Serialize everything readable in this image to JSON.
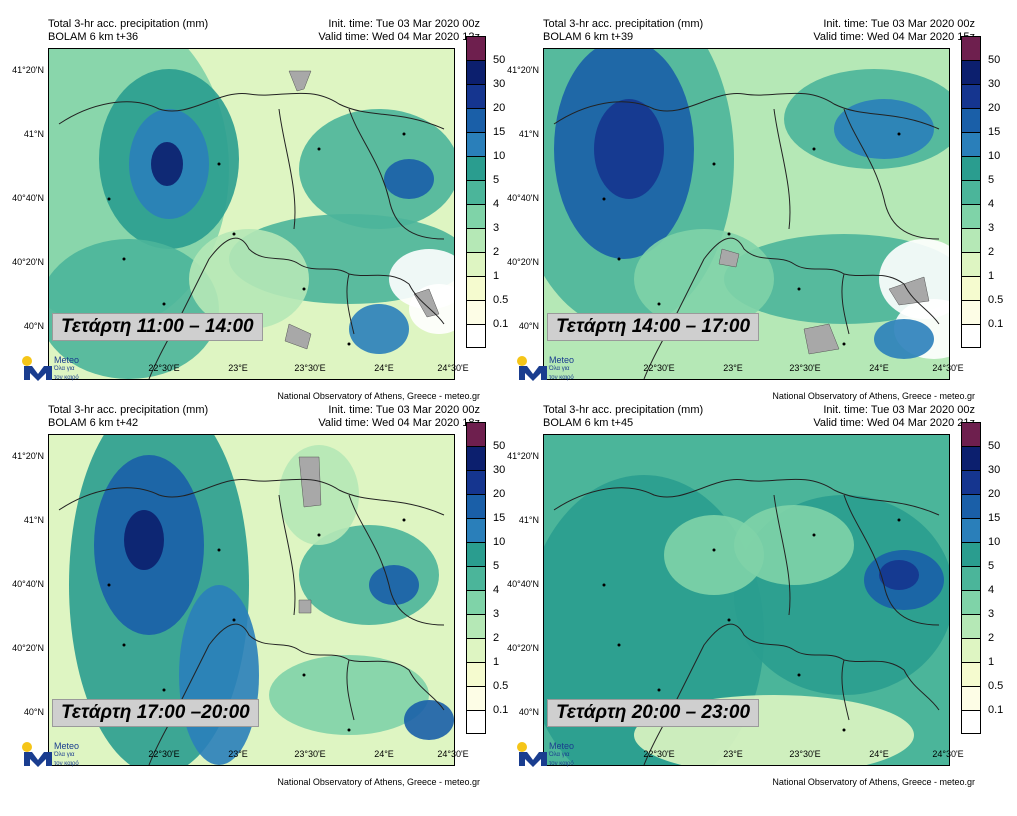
{
  "panels": [
    {
      "title_line1": "Total 3-hr acc. precipitation (mm)",
      "title_line2": "BOLAM 6 km t+36",
      "init_time": "Init. time: Tue 03 Mar 2020 00z",
      "valid_time": "Valid time: Wed 04 Mar 2020 12z",
      "caption": "Τετάρτη 11:00 – 14:00",
      "footer": "National Observatory of Athens, Greece - meteo.gr"
    },
    {
      "title_line1": "Total 3-hr acc. precipitation (mm)",
      "title_line2": "BOLAM 6 km t+39",
      "init_time": "Init. time: Tue 03 Mar 2020 00z",
      "valid_time": "Valid time: Wed 04 Mar 2020 15z",
      "caption": "Τετάρτη 14:00 – 17:00",
      "footer": "National Observatory of Athens, Greece - meteo.gr"
    },
    {
      "title_line1": "Total 3-hr acc. precipitation (mm)",
      "title_line2": "BOLAM 6 km t+42",
      "init_time": "Init. time: Tue 03 Mar 2020 00z",
      "valid_time": "Valid time: Wed 04 Mar 2020 18z",
      "caption": "Τετάρτη 17:00 –20:00",
      "footer": "National Observatory of Athens, Greece - meteo.gr"
    },
    {
      "title_line1": "Total 3-hr acc. precipitation (mm)",
      "title_line2": "BOLAM 6 km t+45",
      "init_time": "Init. time: Tue 03 Mar 2020 00z",
      "valid_time": "Valid time: Wed 04 Mar 2020 21z",
      "caption": "Τετάρτη 20:00 – 23:00",
      "footer": "National Observatory of Athens, Greece - meteo.gr"
    }
  ],
  "lat_labels": [
    "41°20'N",
    "41°N",
    "40°40'N",
    "40°20'N",
    "40°N"
  ],
  "lon_labels": [
    "22°30'E",
    "23°E",
    "23°30'E",
    "24°E",
    "24°30'E"
  ],
  "legend": {
    "labels": [
      "50",
      "30",
      "20",
      "15",
      "10",
      "5",
      "4",
      "3",
      "2",
      "1",
      "0.5",
      "0.1"
    ],
    "colors": [
      "#6e1f4e",
      "#0c1f6e",
      "#15358f",
      "#1a5fa8",
      "#2a7fba",
      "#2a9d8f",
      "#4bb59a",
      "#7fd3a8",
      "#b5e8b6",
      "#def5c2",
      "#f5fbcf",
      "#fdfde6",
      "#ffffff"
    ]
  },
  "logo": {
    "name": "Meteo",
    "tagline1": "Όλα για",
    "tagline2": "τον καιρό",
    "brand_color": "#1a3d8f",
    "dot_color": "#f5c518"
  }
}
